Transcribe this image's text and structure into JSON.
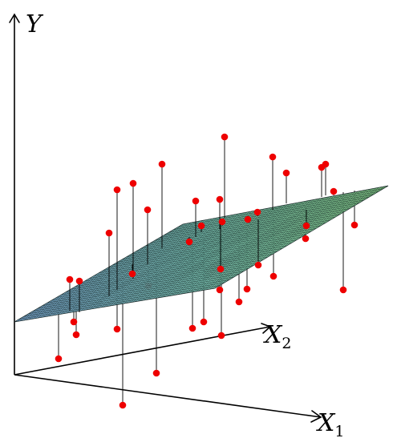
{
  "axes": {
    "y_label": "Y",
    "x1_label": "X",
    "x1_subscript": "1",
    "x2_label": "X",
    "x2_subscript": "2"
  },
  "colors": {
    "point": "#ee0000",
    "plane_low": "#7fb2ea",
    "plane_mid": "#7fd6c2",
    "plane_high": "#8fe68a"
  }
}
